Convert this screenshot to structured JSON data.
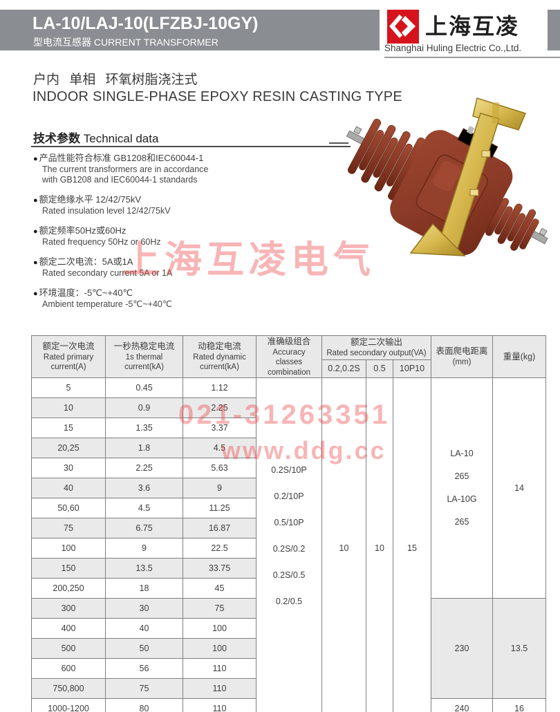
{
  "header": {
    "title": "LA-10/LAJ-10(LFZBJ-10GY)",
    "subtitle": "型电流互感器 CURRENT TRANSFORMER",
    "brand_cn": "上海互凌",
    "company_en": "Shanghai Huling Electric Co.,Ltd.",
    "logo_color": "#d6131c",
    "band_color": "#8a8d91"
  },
  "intro": {
    "line_cn": "户内 单相 环氧树脂浇注式",
    "line_en": "INDOOR SINGLE-PHASE EPOXY RESIN CASTING TYPE"
  },
  "section": {
    "heading_cn": "技术参数",
    "heading_en": "Technical data"
  },
  "bullets": [
    {
      "cn": "产品性能符合标准 GB1208和IEC60044-1",
      "en": "The current transformers are in accordance\nwith GB1208 and IEC60044-1 standards"
    },
    {
      "cn": "额定绝缘水平 12/42/75kV",
      "en": "Rated insulation level 12/42/75kV"
    },
    {
      "cn": "额定频率50Hz或60Hz",
      "en": "Rated frequency 50Hz or 60Hz"
    },
    {
      "cn": "额定二次电流：5A或1A",
      "en": "Rated secondary current 5A or 1A"
    },
    {
      "cn": "环境温度：-5℃~+40℃",
      "en": "Ambient temperature -5℃~+40℃"
    }
  ],
  "watermarks": {
    "brand": "上海互凌电气",
    "phone": "021-31263351",
    "url": "www.ddg.cc",
    "color": "#ec3c3e"
  },
  "table": {
    "header": {
      "primary_cn": "额定一次电流",
      "primary_en": "Rated primary\ncurrent(A)",
      "thermal_cn": "一秒热稳定电流",
      "thermal_en": "1s thermal\ncurrent(kA)",
      "dynamic_cn": "动稳定电流",
      "dynamic_en": "Rated dynamic\ncurrent(kA)",
      "accuracy_cn": "准确级组合",
      "accuracy_en": "Accuracy\nclasses\ncombination",
      "output_cn": "额定二次输出",
      "output_en": "Rated secondary output(VA)",
      "output_subs": [
        "0.2,0.2S",
        "0.5",
        "10P10"
      ],
      "creepage_cn": "表面爬电距离",
      "creepage_unit": "(mm)",
      "weight": "重量(kg)"
    },
    "rows": [
      {
        "primary": "5",
        "thermal": "0.45",
        "dynamic": "1.12"
      },
      {
        "primary": "10",
        "thermal": "0.9",
        "dynamic": "2.25"
      },
      {
        "primary": "15",
        "thermal": "1.35",
        "dynamic": "3.37"
      },
      {
        "primary": "20,25",
        "thermal": "1.8",
        "dynamic": "4.5"
      },
      {
        "primary": "30",
        "thermal": "2.25",
        "dynamic": "5.63"
      },
      {
        "primary": "40",
        "thermal": "3.6",
        "dynamic": "9"
      },
      {
        "primary": "50,60",
        "thermal": "4.5",
        "dynamic": "11.25"
      },
      {
        "primary": "75",
        "thermal": "6.75",
        "dynamic": "16.87"
      },
      {
        "primary": "100",
        "thermal": "9",
        "dynamic": "22.5"
      },
      {
        "primary": "150",
        "thermal": "13.5",
        "dynamic": "33.75"
      },
      {
        "primary": "200,250",
        "thermal": "18",
        "dynamic": "45"
      },
      {
        "primary": "300",
        "thermal": "30",
        "dynamic": "75"
      },
      {
        "primary": "400",
        "thermal": "40",
        "dynamic": "100"
      },
      {
        "primary": "500",
        "thermal": "50",
        "dynamic": "100"
      },
      {
        "primary": "600",
        "thermal": "56",
        "dynamic": "110"
      },
      {
        "primary": "750,800",
        "thermal": "75",
        "dynamic": "110"
      },
      {
        "primary": "1000-1200",
        "thermal": "80",
        "dynamic": "110"
      }
    ],
    "accuracy_classes": [
      "0.2S/10P",
      "0.2/10P",
      "0.5/10P",
      "0.2S/0.2",
      "0.2S/0.5",
      "0.2/0.5"
    ],
    "output_values": [
      "10",
      "10",
      "15"
    ],
    "groups": [
      {
        "rows": 11,
        "creepage_lines": [
          "LA-10",
          "265",
          "LA-10G",
          "265"
        ],
        "weight": "14",
        "shaded": false
      },
      {
        "rows": 5,
        "creepage_lines": [
          "230"
        ],
        "weight": "13.5",
        "shaded": true
      },
      {
        "rows": 1,
        "creepage_lines": [
          "240"
        ],
        "weight": "16",
        "shaded": false
      }
    ]
  }
}
